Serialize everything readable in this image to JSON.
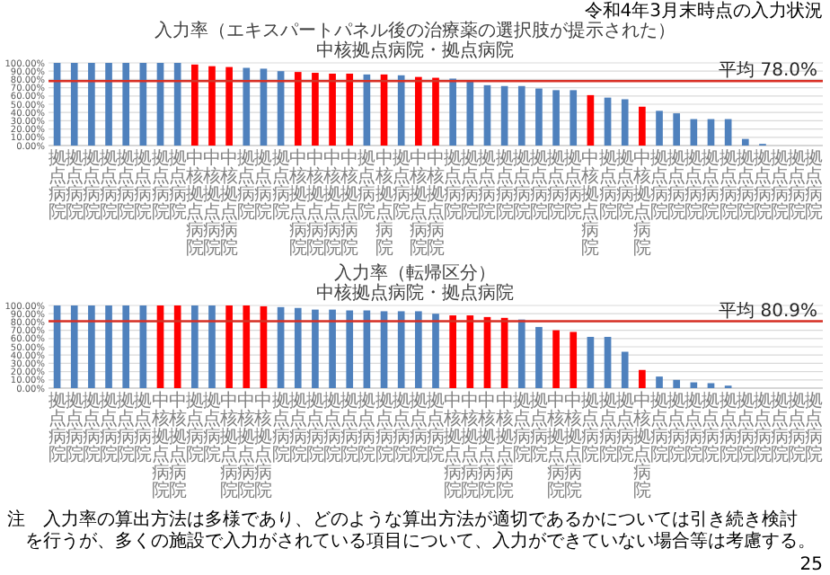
{
  "chart_data": [
    {
      "type": "bar",
      "title": "入力率（エキスパートパネル後の治療薬の選択肢が提示された）",
      "subtitle": "中核拠点病院・拠点病院",
      "categories": [
        "拠点病院",
        "拠点病院",
        "拠点病院",
        "拠点病院",
        "拠点病院",
        "拠点病院",
        "拠点病院",
        "拠点病院",
        "中核拠点病院",
        "中核拠点病院",
        "中核拠点病院",
        "拠点病院",
        "拠点病院",
        "拠点病院",
        "中核拠点病院",
        "中核拠点病院",
        "中核拠点病院",
        "中核拠点病院",
        "拠点病院",
        "中核拠点病院",
        "拠点病院",
        "中核拠点病院",
        "中核拠点病院",
        "拠点病院",
        "拠点病院",
        "拠点病院",
        "拠点病院",
        "拠点病院",
        "拠点病院",
        "拠点病院",
        "拠点病院",
        "中核拠点病院",
        "拠点病院",
        "拠点病院",
        "中核拠点病院",
        "拠点病院",
        "拠点病院",
        "拠点病院",
        "拠点病院",
        "拠点病院",
        "拠点病院",
        "拠点病院",
        "拠点病院",
        "拠点病院",
        "拠点病院"
      ],
      "values": [
        100,
        100,
        100,
        100,
        100,
        100,
        100,
        100,
        98,
        96,
        95,
        94,
        93,
        90,
        89,
        88,
        87,
        87,
        86,
        86,
        85,
        83,
        82,
        81,
        79,
        73,
        72,
        72,
        69,
        67,
        67,
        61,
        58,
        56,
        47,
        42,
        39,
        32,
        32,
        32,
        8,
        2,
        0,
        0,
        0
      ],
      "colors": [
        "#4f81bd",
        "#4f81bd",
        "#4f81bd",
        "#4f81bd",
        "#4f81bd",
        "#4f81bd",
        "#4f81bd",
        "#4f81bd",
        "#ff0000",
        "#ff0000",
        "#ff0000",
        "#4f81bd",
        "#4f81bd",
        "#4f81bd",
        "#ff0000",
        "#ff0000",
        "#ff0000",
        "#ff0000",
        "#4f81bd",
        "#ff0000",
        "#4f81bd",
        "#ff0000",
        "#ff0000",
        "#4f81bd",
        "#4f81bd",
        "#4f81bd",
        "#4f81bd",
        "#4f81bd",
        "#4f81bd",
        "#4f81bd",
        "#4f81bd",
        "#ff0000",
        "#4f81bd",
        "#4f81bd",
        "#ff0000",
        "#4f81bd",
        "#4f81bd",
        "#4f81bd",
        "#4f81bd",
        "#4f81bd",
        "#4f81bd",
        "#4f81bd",
        "#4f81bd",
        "#4f81bd",
        "#4f81bd"
      ],
      "ylim": [
        0,
        100
      ],
      "yticks": [
        {
          "value": 0,
          "label": "0.00%"
        },
        {
          "value": 10,
          "label": "10.00%"
        },
        {
          "value": 20,
          "label": "20.00%"
        },
        {
          "value": 30,
          "label": "30.00%"
        },
        {
          "value": 40,
          "label": "40.00%"
        },
        {
          "value": 50,
          "label": "50.00%"
        },
        {
          "value": 60,
          "label": "60.00%"
        },
        {
          "value": 70,
          "label": "70.00%"
        },
        {
          "value": 80,
          "label": "80.00%"
        },
        {
          "value": 90,
          "label": "90.00%"
        },
        {
          "value": 100,
          "label": "100.00%"
        }
      ],
      "grid": "y",
      "ref_lines": [
        {
          "axis": "y",
          "value": 78.0,
          "label": "平均 78.0%",
          "color": "#d93025"
        }
      ],
      "annotations": [
        "令和4年3月末時点の入力状況"
      ]
    },
    {
      "type": "bar",
      "title": "入力率（転帰区分）",
      "subtitle": "中核拠点病院・拠点病院",
      "categories": [
        "拠点病院",
        "拠点病院",
        "拠点病院",
        "拠点病院",
        "拠点病院",
        "拠点病院",
        "中核拠点病院",
        "中核拠点病院",
        "拠点病院",
        "拠点病院",
        "中核拠点病院",
        "中核拠点病院",
        "中核拠点病院",
        "拠点病院",
        "拠点病院",
        "拠点病院",
        "拠点病院",
        "拠点病院",
        "拠点病院",
        "拠点病院",
        "拠点病院",
        "拠点病院",
        "拠点病院",
        "中核拠点病院",
        "中核拠点病院",
        "中核拠点病院",
        "中核拠点病院",
        "拠点病院",
        "拠点病院",
        "中核拠点病院",
        "中核拠点病院",
        "拠点病院",
        "拠点病院",
        "拠点病院",
        "中核拠点病院",
        "拠点病院",
        "拠点病院",
        "拠点病院",
        "拠点病院",
        "拠点病院",
        "拠点病院",
        "拠点病院",
        "拠点病院",
        "拠点病院",
        "拠点病院"
      ],
      "values": [
        100,
        100,
        100,
        100,
        100,
        100,
        100,
        100,
        100,
        100,
        100,
        100,
        99,
        98,
        97,
        95,
        95,
        94,
        94,
        93,
        93,
        93,
        90,
        88,
        88,
        86,
        85,
        83,
        74,
        70,
        68,
        62,
        62,
        44,
        22,
        14,
        10,
        7,
        6,
        3,
        0,
        0,
        0,
        0,
        0
      ],
      "colors": [
        "#4f81bd",
        "#4f81bd",
        "#4f81bd",
        "#4f81bd",
        "#4f81bd",
        "#4f81bd",
        "#ff0000",
        "#ff0000",
        "#4f81bd",
        "#4f81bd",
        "#ff0000",
        "#ff0000",
        "#ff0000",
        "#4f81bd",
        "#4f81bd",
        "#4f81bd",
        "#4f81bd",
        "#4f81bd",
        "#4f81bd",
        "#4f81bd",
        "#4f81bd",
        "#4f81bd",
        "#4f81bd",
        "#ff0000",
        "#ff0000",
        "#ff0000",
        "#ff0000",
        "#4f81bd",
        "#4f81bd",
        "#ff0000",
        "#ff0000",
        "#4f81bd",
        "#4f81bd",
        "#4f81bd",
        "#ff0000",
        "#4f81bd",
        "#4f81bd",
        "#4f81bd",
        "#4f81bd",
        "#4f81bd",
        "#4f81bd",
        "#4f81bd",
        "#4f81bd",
        "#4f81bd",
        "#4f81bd"
      ],
      "ylim": [
        0,
        100
      ],
      "yticks": [
        {
          "value": 0,
          "label": "0.00%"
        },
        {
          "value": 10,
          "label": "10.00%"
        },
        {
          "value": 20,
          "label": "20.00%"
        },
        {
          "value": 30,
          "label": "30.00%"
        },
        {
          "value": 40,
          "label": "40.00%"
        },
        {
          "value": 50,
          "label": "50.00%"
        },
        {
          "value": 60,
          "label": "60.00%"
        },
        {
          "value": 70,
          "label": "70.00%"
        },
        {
          "value": 80,
          "label": "80.00%"
        },
        {
          "value": 90,
          "label": "90.00%"
        },
        {
          "value": 100,
          "label": "100.00%"
        }
      ],
      "grid": "y",
      "ref_lines": [
        {
          "axis": "y",
          "value": 80.9,
          "label": "平均 80.9%",
          "color": "#d93025"
        }
      ],
      "annotations": [
        "注　入力率の算出方法は多様であり、どのような算出方法が適切であるかについては引き続き検討を行うが、多くの施設で入力がされている項目について、入力ができていない場合等は考慮する。",
        "25"
      ]
    }
  ]
}
